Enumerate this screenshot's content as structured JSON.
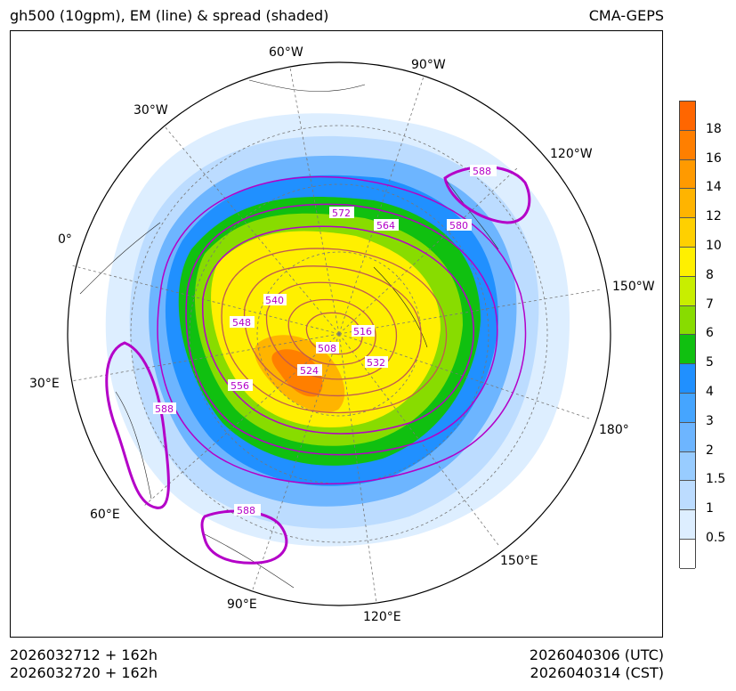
{
  "header": {
    "title_left": "gh500 (10gpm), EM (line) & spread (shaded)",
    "title_right": "CMA-GEPS"
  },
  "footer": {
    "init_utc": "2026032712 + 162h",
    "init_cst": "2026032720 + 162h",
    "valid_utc": "2026040306 (UTC)",
    "valid_cst": "2026040314 (CST)"
  },
  "map": {
    "projection": "north polar stereographic",
    "longitude_labels": [
      "60°W",
      "90°W",
      "30°W",
      "120°W",
      "0°",
      "150°W",
      "30°E",
      "180°",
      "60°E",
      "150°E",
      "90°E",
      "120°E"
    ],
    "contour_labels": [
      "588",
      "572",
      "564",
      "580",
      "540",
      "548",
      "516",
      "508",
      "524",
      "532",
      "556",
      "588",
      "588"
    ],
    "colors": {
      "contour": "#b400c8",
      "inner_contour": "#c05a50"
    }
  },
  "colorbar": {
    "labels": [
      "18",
      "16",
      "14",
      "12",
      "10",
      "8",
      "7",
      "6",
      "5",
      "4",
      "3",
      "2",
      "1.5",
      "1",
      "0.5"
    ],
    "colors": [
      "#ff6600",
      "#ff7f00",
      "#ff9a00",
      "#ffb400",
      "#ffd000",
      "#fff000",
      "#c8ee00",
      "#88dc00",
      "#10c010",
      "#2090ff",
      "#45a5ff",
      "#6db5ff",
      "#98ccff",
      "#bcdcff",
      "#ddeeff",
      "#ffffff"
    ]
  }
}
